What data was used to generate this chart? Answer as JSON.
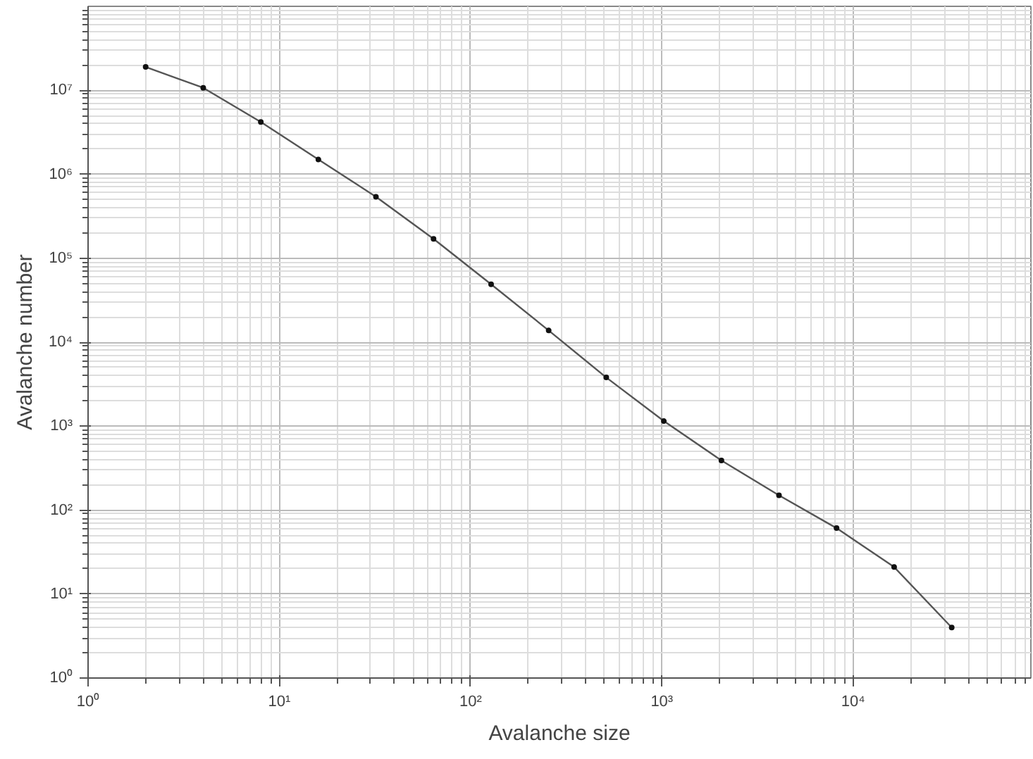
{
  "chart_data": {
    "type": "line",
    "xlabel": "Avalanche size",
    "ylabel": "Avalanche number",
    "log": "xy",
    "grid": true,
    "marker": "circle",
    "line_style": "solid",
    "x": [
      2,
      4,
      8,
      16,
      32,
      64,
      128,
      256,
      512,
      1024,
      2048,
      4096,
      8192,
      16384,
      32768
    ],
    "series": [
      {
        "color": "#555555",
        "values": [
          19000000,
          10700000,
          4200000,
          1500000,
          540000,
          170000,
          49000,
          13800,
          3800,
          1150,
          390,
          150,
          61,
          21,
          4.0
        ]
      }
    ],
    "xlim": [
      1,
      85000
    ],
    "ylim": [
      1,
      100000000
    ],
    "xticks": [
      {
        "value": 1,
        "label": "10⁰"
      },
      {
        "value": 10,
        "label": "10¹"
      },
      {
        "value": 100,
        "label": "10²"
      },
      {
        "value": 1000,
        "label": "10³"
      },
      {
        "value": 10000,
        "label": "10⁴"
      }
    ],
    "yticks": [
      {
        "value": 1,
        "label": "10⁰"
      },
      {
        "value": 10,
        "label": "10¹"
      },
      {
        "value": 100,
        "label": "10²"
      },
      {
        "value": 1000,
        "label": "10³"
      },
      {
        "value": 10000,
        "label": "10⁴"
      },
      {
        "value": 100000,
        "label": "10⁵"
      },
      {
        "value": 1000000,
        "label": "10⁶"
      },
      {
        "value": 10000000,
        "label": "10⁷"
      }
    ]
  }
}
